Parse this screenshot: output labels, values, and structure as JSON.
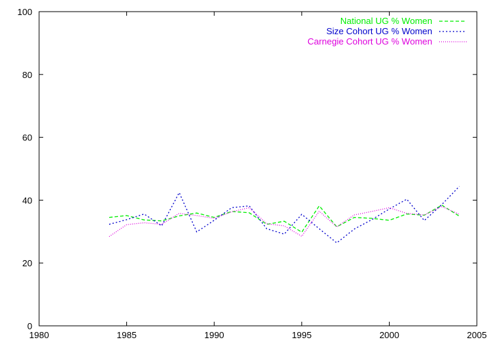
{
  "chart_data": {
    "type": "line",
    "title": "",
    "xlabel": "",
    "ylabel": "",
    "xlim": [
      1980,
      2005
    ],
    "ylim": [
      0,
      100
    ],
    "xticks": [
      1980,
      1985,
      1990,
      1995,
      2000,
      2005
    ],
    "yticks": [
      0,
      20,
      40,
      60,
      80,
      100
    ],
    "grid": false,
    "legend_position": "top-right",
    "x": [
      1984,
      1985,
      1986,
      1987,
      1988,
      1989,
      1990,
      1991,
      1992,
      1993,
      1994,
      1995,
      1996,
      1997,
      1998,
      1999,
      2000,
      2001,
      2002,
      2003,
      2004
    ],
    "series": [
      {
        "name": "National UG % Women",
        "color": "#00ee00",
        "dash": "dashed",
        "values": [
          34.5,
          35.1,
          33.7,
          33.4,
          35.0,
          35.9,
          34.5,
          36.4,
          36.0,
          32.3,
          33.3,
          29.8,
          38.2,
          31.5,
          34.5,
          34.2,
          33.6,
          35.6,
          35.2,
          38.4,
          34.9
        ]
      },
      {
        "name": "Size Cohort UG % Women",
        "color": "#0000cc",
        "dash": "dotted",
        "values": [
          32.3,
          33.8,
          35.6,
          31.8,
          42.4,
          29.9,
          33.6,
          37.6,
          38.2,
          30.9,
          29.2,
          35.5,
          30.9,
          26.4,
          30.8,
          33.8,
          37.2,
          40.3,
          33.5,
          38.6,
          44.4
        ]
      },
      {
        "name": "Carnegie Cohort UG % Women",
        "color": "#dd00dd",
        "dash": "dotted-fine",
        "values": [
          28.4,
          32.2,
          32.8,
          32.3,
          35.8,
          35.1,
          34.2,
          36.3,
          37.6,
          32.5,
          31.8,
          28.5,
          36.5,
          31.5,
          35.3,
          36.4,
          37.6,
          35.8,
          35.3,
          38.0,
          35.5
        ]
      }
    ]
  }
}
